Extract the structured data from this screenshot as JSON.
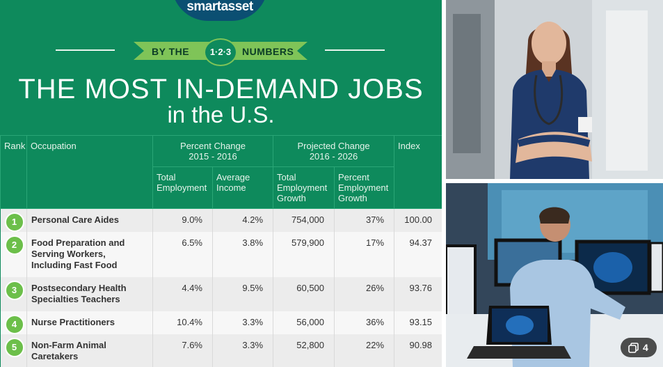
{
  "infographic": {
    "logo": "smartasset",
    "ribbon_left": "BY THE",
    "ribbon_badge": "1·2·3",
    "ribbon_right": "NUMBERS",
    "title": "THE MOST IN-DEMAND JOBS",
    "subtitle": "in the U.S.",
    "headers": {
      "rank": "Rank",
      "occupation": "Occupation",
      "group1": "Percent Change\n2015 - 2016",
      "group2": "Projected Change\n2016 - 2026",
      "index": "Index",
      "total_employment": "Total\nEmployment",
      "average_income": "Average\nIncome",
      "total_employment_growth": "Total\nEmployment\nGrowth",
      "percent_employment_growth": "Percent\nEmployment\nGrowth"
    },
    "rows": [
      {
        "rank": "1",
        "occupation": "Personal Care Aides",
        "total_employment": "9.0%",
        "average_income": "4.2%",
        "growth": "754,000",
        "percent_growth": "37%",
        "index": "100.00"
      },
      {
        "rank": "2",
        "occupation": "Food Preparation and\nServing Workers,\nIncluding Fast Food",
        "total_employment": "6.5%",
        "average_income": "3.8%",
        "growth": "579,900",
        "percent_growth": "17%",
        "index": "94.37"
      },
      {
        "rank": "3",
        "occupation": "Postsecondary Health\nSpecialties Teachers",
        "total_employment": "4.4%",
        "average_income": "9.5%",
        "growth": "60,500",
        "percent_growth": "26%",
        "index": "93.76"
      },
      {
        "rank": "4",
        "occupation": "Nurse Practitioners",
        "total_employment": "10.4%",
        "average_income": "3.3%",
        "growth": "56,000",
        "percent_growth": "36%",
        "index": "93.15"
      },
      {
        "rank": "5",
        "occupation": "Non-Farm Animal\nCaretakers",
        "total_employment": "7.6%",
        "average_income": "3.3%",
        "growth": "52,800",
        "percent_growth": "22%",
        "index": "90.98"
      }
    ]
  },
  "album": {
    "count": "4"
  },
  "colors": {
    "green": "#0e8a5c",
    "ribbon": "#7fc458",
    "logo_bg": "#0b4f72",
    "rank_circle": "#6cbf4a"
  }
}
